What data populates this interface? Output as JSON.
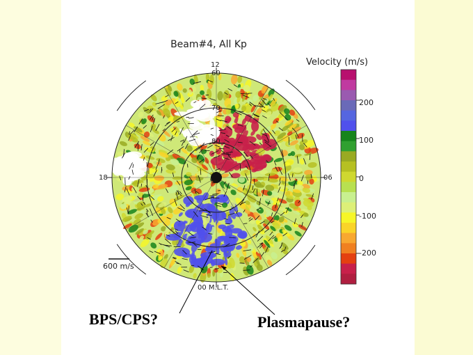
{
  "chart_data": {
    "type": "heatmap",
    "title": "Beam#4, All Kp",
    "projection": "polar dial (magnetic local time)",
    "mlt_labels": {
      "top": "12",
      "right": "06",
      "bottom": "00 M.L.T.",
      "left": "18"
    },
    "latitude_labels": [
      "60",
      "70",
      "80"
    ],
    "colorbar": {
      "title": "Velocity (m/s)",
      "ticks": [
        200,
        100,
        0,
        -100,
        -200
      ],
      "range": [
        -280,
        280
      ],
      "colors": [
        "#b8106e",
        "#c03aa0",
        "#9a5ab0",
        "#6a6ab8",
        "#5566e0",
        "#5050ec",
        "#16841c",
        "#30a030",
        "#99aa22",
        "#b6c022",
        "#cfd830",
        "#b8e050",
        "#c8f090",
        "#ddf078",
        "#f6f628",
        "#fad428",
        "#f8a830",
        "#f08020",
        "#e44010",
        "#c8204a",
        "#b01e40"
      ]
    },
    "vector_scale": "600 m/s",
    "annotations": [
      "BPS/CPS?",
      "Plasmapause?"
    ]
  }
}
